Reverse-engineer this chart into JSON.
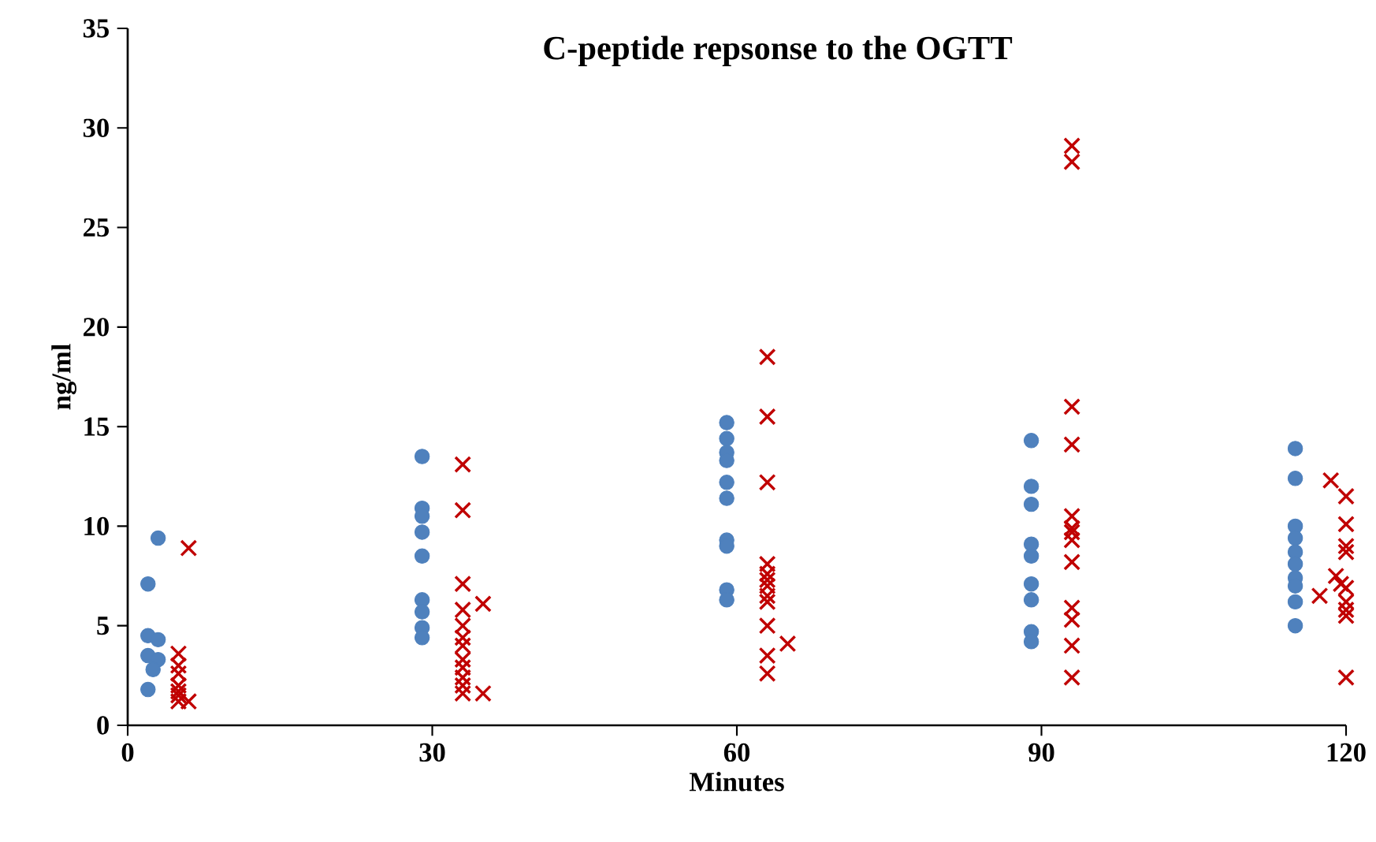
{
  "chart_data": {
    "type": "scatter",
    "title": "C-peptide repsonse to the OGTT",
    "xlabel": "Minutes",
    "ylabel": "ng/ml",
    "xlim": [
      0,
      120
    ],
    "xticks": [
      0,
      30,
      60,
      90,
      120
    ],
    "ylim": [
      0,
      35
    ],
    "yticks": [
      0,
      5,
      10,
      15,
      20,
      25,
      30,
      35
    ],
    "grid": false,
    "series": [
      {
        "color": "#4f81bd",
        "marker": "circle",
        "x": [
          3,
          2,
          2,
          3,
          2,
          3,
          2.5,
          2,
          29,
          29,
          29,
          29,
          29,
          29,
          29,
          29,
          29,
          59,
          59,
          59,
          59,
          59,
          59,
          59,
          59,
          59,
          59,
          89,
          89,
          89,
          89,
          89,
          89,
          89,
          89,
          89,
          115,
          115,
          115,
          115,
          115,
          115,
          115,
          115,
          115,
          115
        ],
        "values": [
          9.4,
          7.1,
          4.5,
          4.3,
          3.5,
          3.3,
          2.8,
          1.8,
          13.5,
          10.9,
          10.5,
          9.7,
          8.5,
          6.3,
          5.7,
          4.9,
          4.4,
          15.2,
          14.4,
          13.7,
          13.3,
          12.2,
          11.4,
          9.3,
          9.0,
          6.8,
          6.3,
          14.3,
          12.0,
          11.1,
          9.1,
          8.5,
          7.1,
          6.3,
          4.7,
          4.2,
          13.9,
          12.4,
          10.0,
          9.4,
          8.7,
          8.1,
          7.4,
          7.0,
          6.2,
          5.0
        ]
      },
      {
        "color": "#c00000",
        "marker": "cross",
        "x": [
          6,
          5,
          5,
          5,
          5,
          5,
          5,
          6,
          5,
          33,
          33,
          33,
          35,
          33,
          33,
          33,
          33,
          33,
          33,
          33,
          33,
          33,
          35,
          63,
          63,
          63,
          63,
          63,
          63,
          63,
          63,
          63,
          63,
          63,
          63,
          65,
          93,
          93,
          93,
          93,
          93,
          93,
          93,
          93,
          93,
          93,
          93,
          93,
          93,
          118.5,
          120,
          120,
          120,
          120,
          119,
          119.5,
          120,
          117.4,
          120,
          120,
          120,
          120
        ],
        "values": [
          8.9,
          3.6,
          3.0,
          2.6,
          2.0,
          1.7,
          1.5,
          1.2,
          1.2,
          13.1,
          10.8,
          7.1,
          6.1,
          5.8,
          5.0,
          4.4,
          4.0,
          3.3,
          2.9,
          2.4,
          2.0,
          1.6,
          1.6,
          18.5,
          15.5,
          12.2,
          8.1,
          7.6,
          7.3,
          7.0,
          6.5,
          6.2,
          5.0,
          3.5,
          2.6,
          4.1,
          29.1,
          28.3,
          16.0,
          14.1,
          10.5,
          9.9,
          9.7,
          9.3,
          8.2,
          5.9,
          5.3,
          4.0,
          2.4,
          12.3,
          11.5,
          10.1,
          9.0,
          8.7,
          7.5,
          7.1,
          6.9,
          6.5,
          6.2,
          5.8,
          5.5,
          2.4
        ]
      }
    ]
  }
}
